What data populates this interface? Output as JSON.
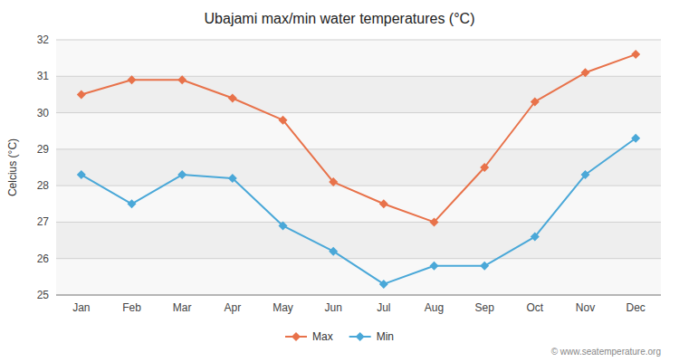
{
  "chart_data": {
    "type": "line",
    "title": "Ubajami max/min water temperatures (°C)",
    "ylabel": "Celcius (°C)",
    "categories": [
      "Jan",
      "Feb",
      "Mar",
      "Apr",
      "May",
      "Jun",
      "Jul",
      "Aug",
      "Sep",
      "Oct",
      "Nov",
      "Dec"
    ],
    "series": [
      {
        "name": "Max",
        "color": "#e8724a",
        "marker": "diamond",
        "values": [
          30.5,
          30.9,
          30.9,
          30.4,
          29.8,
          28.1,
          27.5,
          27.0,
          28.5,
          30.3,
          31.1,
          31.6
        ]
      },
      {
        "name": "Min",
        "color": "#4aa8d8",
        "marker": "diamond",
        "values": [
          28.3,
          27.5,
          28.3,
          28.2,
          26.9,
          26.2,
          25.3,
          25.8,
          25.8,
          26.6,
          28.3,
          29.3
        ]
      }
    ],
    "ylim": [
      25,
      32
    ],
    "yticks": [
      25,
      26,
      27,
      28,
      29,
      30,
      31,
      32
    ],
    "grid": true,
    "legend": "bottom",
    "annotations": [
      "© www.seatemperature.org"
    ]
  }
}
